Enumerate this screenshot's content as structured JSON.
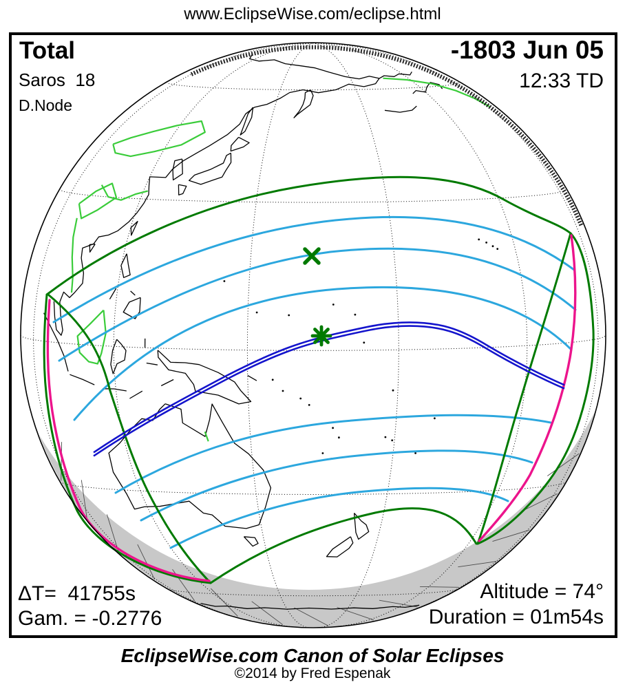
{
  "page": {
    "url": "www.EclipseWise.com/eclipse.html"
  },
  "header": {
    "type": "Total",
    "saros": "Saros  18",
    "node": "D.Node",
    "date": "-1803 Jun 05",
    "time": "12:33 TD"
  },
  "stats": {
    "delta_t": "ΔT=  41755s",
    "gamma": "Gam. = -0.2776",
    "altitude": "Altitude = 74°",
    "duration": "Duration = 01m54s"
  },
  "footer": {
    "title": "EclipseWise.com Canon of Solar Eclipses",
    "copyright": "©2014 by Fred Espenak"
  },
  "map": {
    "projection": "orthographic",
    "markers": [
      {
        "name": "point-of-greatest-eclipse",
        "symbol": "asterisk",
        "color": "#007A00"
      },
      {
        "name": "subsolar-point",
        "symbol": "x",
        "color": "#007A00"
      }
    ],
    "colors": {
      "penumbra_limits": "#007A00",
      "umbral_path": "#1414CC",
      "magnitude_contours": "#2CA7DE",
      "rise_set_curves": "#EC148C",
      "coastlines": "#000000",
      "borders_rivers": "#3ACC3A",
      "night_shading": "#C8C8C8"
    }
  }
}
